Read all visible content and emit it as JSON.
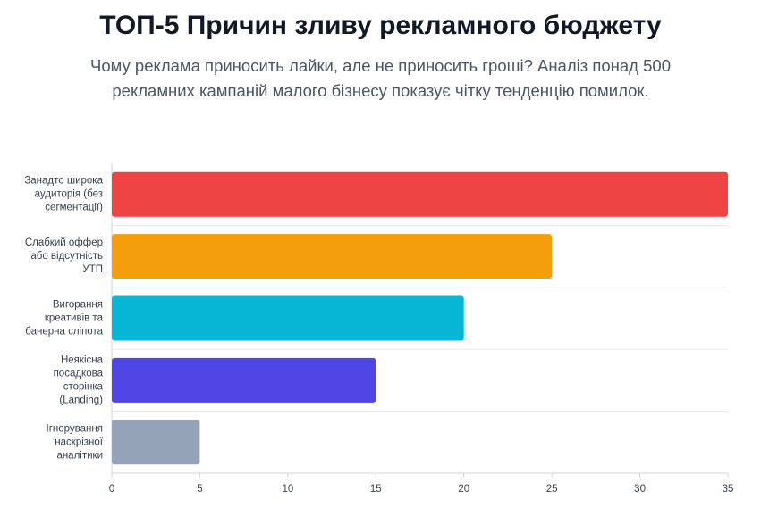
{
  "chart_data": {
    "type": "barh",
    "title": "ТОП-5 Причин зливу рекламного бюджету",
    "subtitle": "Чому реклама приносить лайки, але не приносить гроші? Аналіз понад 500 рекламних кампаній малого бізнесу показує чітку тенденцію помилок.",
    "categories": [
      [
        "Занадто широка",
        "аудиторія (без",
        "сегментації)"
      ],
      [
        "Слабкий оффер",
        "або відсутність",
        "УТП"
      ],
      [
        "Вигорання",
        "креативів та",
        "банерна сліпота"
      ],
      [
        "Неякісна",
        "посадкова",
        "сторінка",
        "(Landing)"
      ],
      [
        "Ігнорування",
        "наскрізної",
        "аналітики"
      ]
    ],
    "values": [
      35,
      25,
      20,
      15,
      5
    ],
    "colors": [
      "#ef4444",
      "#f59e0b",
      "#06b6d4",
      "#4f46e5",
      "#94a3b8"
    ],
    "xlim": [
      0,
      35
    ],
    "xticks": [
      0,
      5,
      10,
      15,
      20,
      25,
      30,
      35
    ]
  }
}
